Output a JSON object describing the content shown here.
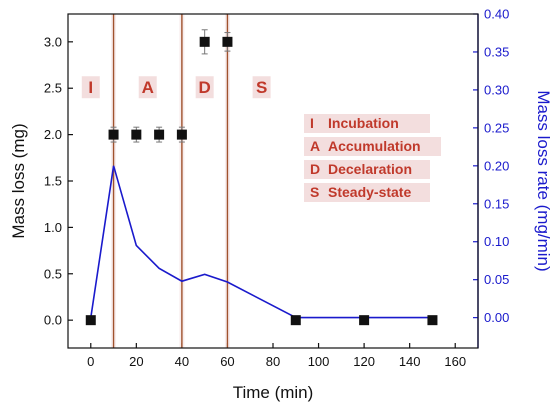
{
  "chart_data": {
    "type": "combo",
    "xlabel": "Time (min)",
    "ylabel_left": "Mass loss (mg)",
    "ylabel_right": "Mass loss rate (mg/min)",
    "xlim": [
      -10,
      170
    ],
    "ylim_left": [
      -0.3,
      3.3
    ],
    "ylim_right": [
      -0.04,
      0.4
    ],
    "x_ticks": [
      0,
      20,
      40,
      60,
      80,
      100,
      120,
      140,
      160
    ],
    "y_left_ticks": [
      "0.0",
      "0.5",
      "1.0",
      "1.5",
      "2.0",
      "2.5",
      "3.0"
    ],
    "y_right_ticks": [
      "0.00",
      "0.05",
      "0.10",
      "0.15",
      "0.20",
      "0.25",
      "0.30",
      "0.35",
      "0.40"
    ],
    "grid": false,
    "stage_boundaries": [
      10,
      40,
      60
    ],
    "series": [
      {
        "kind": "scatter",
        "axis": "left",
        "marker": "square",
        "x": [
          0,
          10,
          20,
          30,
          40,
          50,
          60,
          90,
          120,
          150
        ],
        "y": [
          0.0,
          2.0,
          2.0,
          2.0,
          2.0,
          3.0,
          3.0,
          0.0,
          0.0,
          0.0
        ],
        "err": [
          0,
          0.08,
          0.08,
          0.08,
          0.08,
          0.13,
          0.1,
          0,
          0,
          0
        ]
      },
      {
        "kind": "line",
        "axis": "right",
        "x": [
          0,
          10,
          20,
          30,
          40,
          50,
          60,
          90,
          120,
          150
        ],
        "y": [
          0.0,
          0.2,
          0.095,
          0.065,
          0.048,
          0.057,
          0.047,
          0.0,
          0.0,
          0.0
        ]
      }
    ],
    "stage_labels": [
      {
        "letter": "I",
        "x": 0
      },
      {
        "letter": "A",
        "x": 25
      },
      {
        "letter": "D",
        "x": 50
      },
      {
        "letter": "S",
        "x": 75
      }
    ],
    "legend": {
      "placement": "right-middle",
      "entries": [
        {
          "letter": "I",
          "text": "Incubation"
        },
        {
          "letter": "A",
          "text": "Accumulation"
        },
        {
          "letter": "D",
          "text": "Decelaration"
        },
        {
          "letter": "S",
          "text": "Steady-state"
        }
      ]
    },
    "colors": {
      "mass_loss": "#111111",
      "rate_line": "#1a1acc",
      "stage_line": "#a0522d",
      "stage_text": "#c0392b",
      "label_bg": "#f3dede"
    }
  }
}
